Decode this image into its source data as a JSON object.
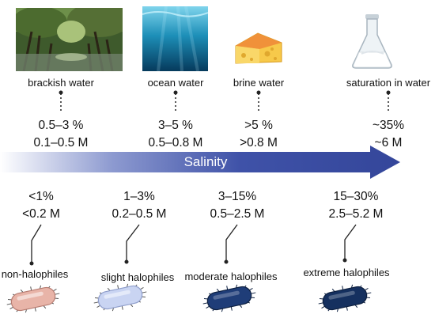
{
  "environments": [
    {
      "name": "brackish water",
      "percent": "0.5–3 %",
      "molar": "0.1–0.5 M",
      "icon": "mangrove-photo"
    },
    {
      "name": "ocean water",
      "percent": "3–5 %",
      "molar": "0.5–0.8 M",
      "icon": "ocean-photo"
    },
    {
      "name": "brine water",
      "percent": ">5 %",
      "molar": ">0.8 M",
      "icon": "cheese-icon"
    },
    {
      "name": "saturation in water",
      "percent": "~35%",
      "molar": "~6 M",
      "icon": "flask-icon"
    }
  ],
  "arrow": {
    "label": "Salinity",
    "color": "#3b4ea6"
  },
  "organisms": [
    {
      "name": "non-halophiles",
      "percent": "<1%",
      "molar": "<0.2 M",
      "color": "#e8b4a8"
    },
    {
      "name": "slight halophiles",
      "percent": "1–3%",
      "molar": "0.2–0.5 M",
      "color": "#c9d4f2"
    },
    {
      "name": "moderate halophiles",
      "percent": "3–15%",
      "molar": "0.5–2.5 M",
      "color": "#1f3d78"
    },
    {
      "name": "extreme halophiles",
      "percent": "15–30%",
      "molar": "2.5–5.2 M",
      "color": "#15305f"
    }
  ]
}
